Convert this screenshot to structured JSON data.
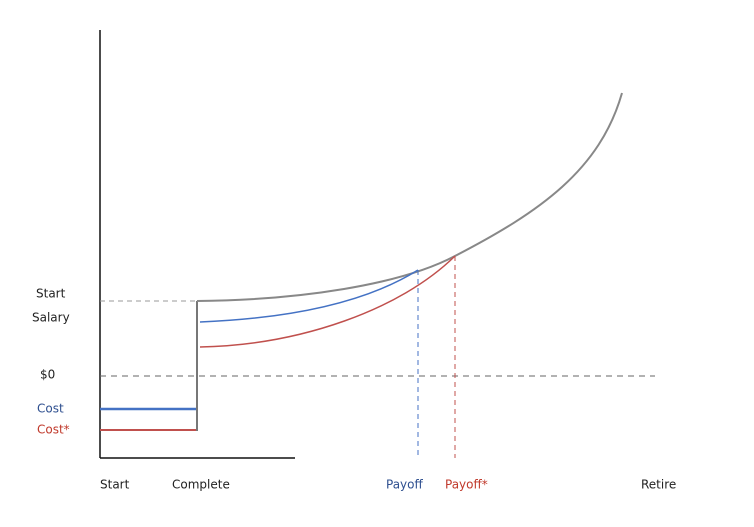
{
  "y_axis": {
    "start_salary": [
      "Start",
      "Salary"
    ],
    "zero": "$0",
    "cost": "Cost",
    "cost_star": "Cost*"
  },
  "x_axis": {
    "start": "Start",
    "complete": "Complete",
    "payoff": "Payoff",
    "payoff_star": "Payoff*",
    "retire": "Retire"
  }
}
